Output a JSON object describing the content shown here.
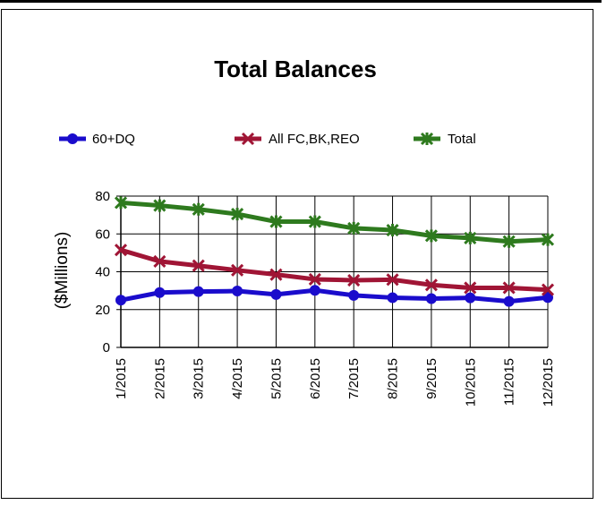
{
  "chart_data": {
    "type": "line",
    "title": "Total Balances",
    "xlabel": "",
    "ylabel": "($Millions)",
    "categories": [
      "1/2015",
      "2/2015",
      "3/2015",
      "4/2015",
      "5/2015",
      "6/2015",
      "7/2015",
      "8/2015",
      "9/2015",
      "10/2015",
      "11/2015",
      "12/2015"
    ],
    "ylim": [
      0,
      80
    ],
    "yticks": [
      0,
      20,
      40,
      60,
      80
    ],
    "grid": true,
    "legend_position": "top",
    "series": [
      {
        "name": "60+DQ",
        "color": "#1a0ccc",
        "marker": "circle",
        "values": [
          25,
          29,
          29.5,
          29.8,
          28,
          30.2,
          27.5,
          26.3,
          25.8,
          26.2,
          24.3,
          26.4
        ]
      },
      {
        "name": "All FC,BK,REO",
        "color": "#a01535",
        "marker": "x",
        "values": [
          51.5,
          45.5,
          43.2,
          40.8,
          38.5,
          36,
          35.5,
          35.8,
          33,
          31.5,
          31.5,
          30.5
        ]
      },
      {
        "name": "Total",
        "color": "#2e7a1e",
        "marker": "star",
        "values": [
          76.5,
          75,
          73,
          70.5,
          66.5,
          66.5,
          63,
          62,
          59,
          57.8,
          56,
          57
        ]
      }
    ]
  }
}
